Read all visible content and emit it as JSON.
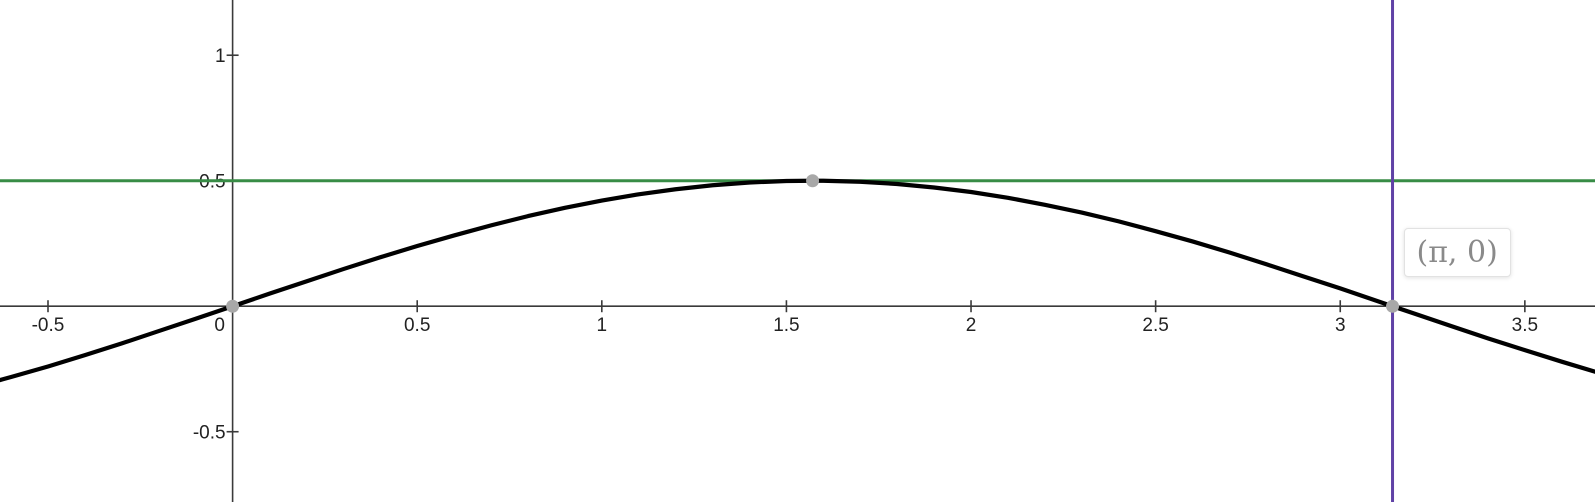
{
  "chart_data": {
    "type": "line",
    "title": "",
    "xlabel": "",
    "ylabel": "",
    "xlim": [
      -0.63,
      3.69
    ],
    "ylim": [
      -0.78,
      1.22
    ],
    "grid": false,
    "x_ticks": [
      {
        "value": -0.5,
        "label": "-0.5"
      },
      {
        "value": 0.5,
        "label": "0.5"
      },
      {
        "value": 1,
        "label": "1"
      },
      {
        "value": 1.5,
        "label": "1.5"
      },
      {
        "value": 2,
        "label": "2"
      },
      {
        "value": 2.5,
        "label": "2.5"
      },
      {
        "value": 3,
        "label": "3"
      },
      {
        "value": 3.5,
        "label": "3.5"
      }
    ],
    "origin_label": "0",
    "y_ticks": [
      {
        "value": 1,
        "label": "1"
      },
      {
        "value": 0.5,
        "label": "0.5"
      },
      {
        "value": -0.5,
        "label": "-0.5"
      }
    ],
    "series": [
      {
        "kind": "curve",
        "color": "#000000",
        "x": [
          -0.7,
          -0.6,
          -0.5,
          -0.4,
          -0.3,
          -0.2,
          -0.1,
          0,
          0.1,
          0.2,
          0.3,
          0.4,
          0.5,
          0.6,
          0.7,
          0.8,
          0.9,
          1.0,
          1.1,
          1.2,
          1.3,
          1.4,
          1.5,
          1.5708,
          1.6,
          1.7,
          1.8,
          1.9,
          2.0,
          2.1,
          2.2,
          2.3,
          2.4,
          2.5,
          2.6,
          2.7,
          2.8,
          2.9,
          3.0,
          3.1,
          3.1416,
          3.2,
          3.3,
          3.4,
          3.5,
          3.6,
          3.7
        ],
        "y": [
          -0.322,
          -0.282,
          -0.24,
          -0.195,
          -0.148,
          -0.099,
          -0.05,
          0,
          0.05,
          0.099,
          0.148,
          0.195,
          0.24,
          0.282,
          0.322,
          0.359,
          0.392,
          0.421,
          0.446,
          0.466,
          0.482,
          0.493,
          0.499,
          0.5,
          0.5,
          0.496,
          0.487,
          0.473,
          0.455,
          0.432,
          0.404,
          0.373,
          0.338,
          0.299,
          0.258,
          0.214,
          0.167,
          0.119,
          0.071,
          0.021,
          0,
          -0.029,
          -0.079,
          -0.128,
          -0.175,
          -0.221,
          -0.265
        ]
      },
      {
        "kind": "horizontal-line",
        "y": 0.5,
        "color": "#388c46"
      },
      {
        "kind": "vertical-line",
        "x": 3.1416,
        "color": "#6042a6"
      }
    ],
    "points": [
      {
        "x": 0,
        "y": 0,
        "color": "#a8a8a8"
      },
      {
        "x": 1.5708,
        "y": 0.5,
        "color": "#a8a8a8"
      },
      {
        "x": 3.1416,
        "y": 0,
        "color": "#a8a8a8",
        "label": "(π, 0)"
      }
    ]
  }
}
